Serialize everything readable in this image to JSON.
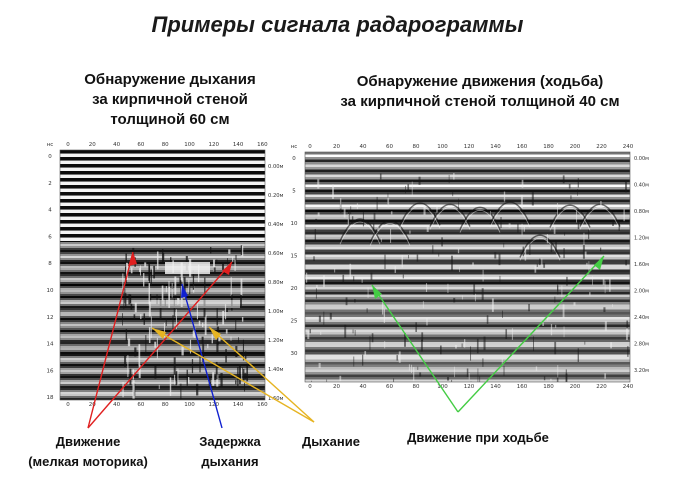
{
  "title": "Примеры сигнала радарограммы",
  "left_panel": {
    "heading_line1": "Обнаружение дыхания",
    "heading_line2": "за кирпичной стеной",
    "heading_line3": "толщиной 60 см",
    "y_unit": "нс",
    "x_ticks": [
      "0",
      "20",
      "40",
      "60",
      "80",
      "100",
      "120",
      "140",
      "160"
    ],
    "y_ticks": [
      "0",
      "2",
      "4",
      "6",
      "8",
      "10",
      "12",
      "14",
      "16",
      "18"
    ],
    "right_ticks": [
      "0.00м",
      "0.20м",
      "0.40м",
      "0.60м",
      "0.80м",
      "1.00м",
      "1.20м",
      "1.40м",
      "1.60м"
    ],
    "caption_motion_line1": "Движение",
    "caption_motion_line2": "(мелкая моторика)",
    "caption_delay_line1": "Задержка",
    "caption_delay_line2": "дыхания",
    "caption_breath": "Дыхание",
    "colors": {
      "motion_arrow": "#e02020",
      "delay_arrow": "#1020d0",
      "breath_arrow": "#e6b422"
    }
  },
  "right_panel": {
    "heading_line1": "Обнаружение движения (ходьба)",
    "heading_line2": "за кирпичной стеной толщиной 40 см",
    "y_unit": "нс",
    "x_ticks": [
      "0",
      "20",
      "40",
      "60",
      "80",
      "100",
      "120",
      "140",
      "160",
      "180",
      "200",
      "220",
      "240"
    ],
    "y_ticks": [
      "0",
      "5",
      "10",
      "15",
      "20",
      "25",
      "30"
    ],
    "right_ticks": [
      "0.00м",
      "0.40м",
      "0.80м",
      "1.20м",
      "1.60м",
      "2.00м",
      "2.40м",
      "2.80м",
      "3.20м"
    ],
    "caption_walk": "Движение при ходьбе",
    "colors": {
      "walk_arrow": "#44cc44"
    }
  }
}
